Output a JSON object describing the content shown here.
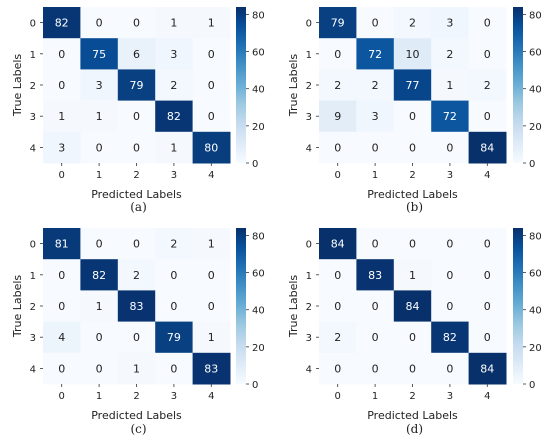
{
  "chart_data": [
    {
      "type": "heatmap",
      "panel_label": "(a)",
      "xlabel": "Predicted Labels",
      "ylabel": "True Labels",
      "x_categories": [
        "0",
        "1",
        "2",
        "3",
        "4"
      ],
      "y_categories": [
        "0",
        "1",
        "2",
        "3",
        "4"
      ],
      "colorbar_ticks": [
        "0",
        "20",
        "40",
        "60",
        "80"
      ],
      "vmin": 0,
      "vmax": 84,
      "colormap": "Blues",
      "values": [
        [
          82,
          0,
          0,
          1,
          1
        ],
        [
          0,
          75,
          6,
          3,
          0
        ],
        [
          0,
          3,
          79,
          2,
          0
        ],
        [
          1,
          1,
          0,
          82,
          0
        ],
        [
          3,
          0,
          0,
          1,
          80
        ]
      ]
    },
    {
      "type": "heatmap",
      "panel_label": "(b)",
      "xlabel": "Predicted Labels",
      "ylabel": "True Labels",
      "x_categories": [
        "0",
        "1",
        "2",
        "3",
        "4"
      ],
      "y_categories": [
        "0",
        "1",
        "2",
        "3",
        "4"
      ],
      "colorbar_ticks": [
        "0",
        "20",
        "40",
        "60",
        "80"
      ],
      "vmin": 0,
      "vmax": 84,
      "colormap": "Blues",
      "values": [
        [
          79,
          0,
          2,
          3,
          0
        ],
        [
          0,
          72,
          10,
          2,
          0
        ],
        [
          2,
          2,
          77,
          1,
          2
        ],
        [
          9,
          3,
          0,
          72,
          0
        ],
        [
          0,
          0,
          0,
          0,
          84
        ]
      ]
    },
    {
      "type": "heatmap",
      "panel_label": "(c)",
      "xlabel": "Predicted Labels",
      "ylabel": "True Labels",
      "x_categories": [
        "0",
        "1",
        "2",
        "3",
        "4"
      ],
      "y_categories": [
        "0",
        "1",
        "2",
        "3",
        "4"
      ],
      "colorbar_ticks": [
        "0",
        "20",
        "40",
        "60",
        "80"
      ],
      "vmin": 0,
      "vmax": 84,
      "colormap": "Blues",
      "values": [
        [
          81,
          0,
          0,
          2,
          1
        ],
        [
          0,
          82,
          2,
          0,
          0
        ],
        [
          0,
          1,
          83,
          0,
          0
        ],
        [
          4,
          0,
          0,
          79,
          1
        ],
        [
          0,
          0,
          1,
          0,
          83
        ]
      ]
    },
    {
      "type": "heatmap",
      "panel_label": "(d)",
      "xlabel": "Predicted Labels",
      "ylabel": "True Labels",
      "x_categories": [
        "0",
        "1",
        "2",
        "3",
        "4"
      ],
      "y_categories": [
        "0",
        "1",
        "2",
        "3",
        "4"
      ],
      "colorbar_ticks": [
        "0",
        "20",
        "40",
        "60",
        "80"
      ],
      "vmin": 0,
      "vmax": 84,
      "colormap": "Blues",
      "values": [
        [
          84,
          0,
          0,
          0,
          0
        ],
        [
          0,
          83,
          1,
          0,
          0
        ],
        [
          0,
          0,
          84,
          0,
          0
        ],
        [
          2,
          0,
          0,
          82,
          0
        ],
        [
          0,
          0,
          0,
          0,
          84
        ]
      ]
    }
  ]
}
